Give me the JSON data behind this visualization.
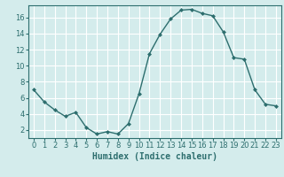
{
  "x": [
    0,
    1,
    2,
    3,
    4,
    5,
    6,
    7,
    8,
    9,
    10,
    11,
    12,
    13,
    14,
    15,
    16,
    17,
    18,
    19,
    20,
    21,
    22,
    23
  ],
  "y": [
    7.0,
    5.5,
    4.5,
    3.7,
    4.2,
    2.3,
    1.5,
    1.8,
    1.5,
    2.8,
    6.5,
    11.5,
    13.9,
    15.8,
    16.9,
    17.0,
    16.5,
    16.2,
    14.2,
    11.0,
    10.8,
    7.0,
    5.2,
    5.0
  ],
  "line_color": "#2d6e6e",
  "marker": "D",
  "marker_size": 2,
  "bg_color": "#d4ecec",
  "grid_color": "#ffffff",
  "xlabel": "Humidex (Indice chaleur)",
  "xlabel_fontsize": 7,
  "ylabel_ticks": [
    2,
    4,
    6,
    8,
    10,
    12,
    14,
    16
  ],
  "xlim": [
    -0.5,
    23.5
  ],
  "ylim": [
    1.0,
    17.5
  ],
  "xtick_labels": [
    "0",
    "1",
    "2",
    "3",
    "4",
    "5",
    "6",
    "7",
    "8",
    "9",
    "10",
    "11",
    "12",
    "13",
    "14",
    "15",
    "16",
    "17",
    "18",
    "19",
    "20",
    "21",
    "22",
    "23"
  ],
  "tick_fontsize": 6,
  "tick_color": "#2d6e6e",
  "axis_color": "#2d6e6e",
  "linewidth": 1.0
}
